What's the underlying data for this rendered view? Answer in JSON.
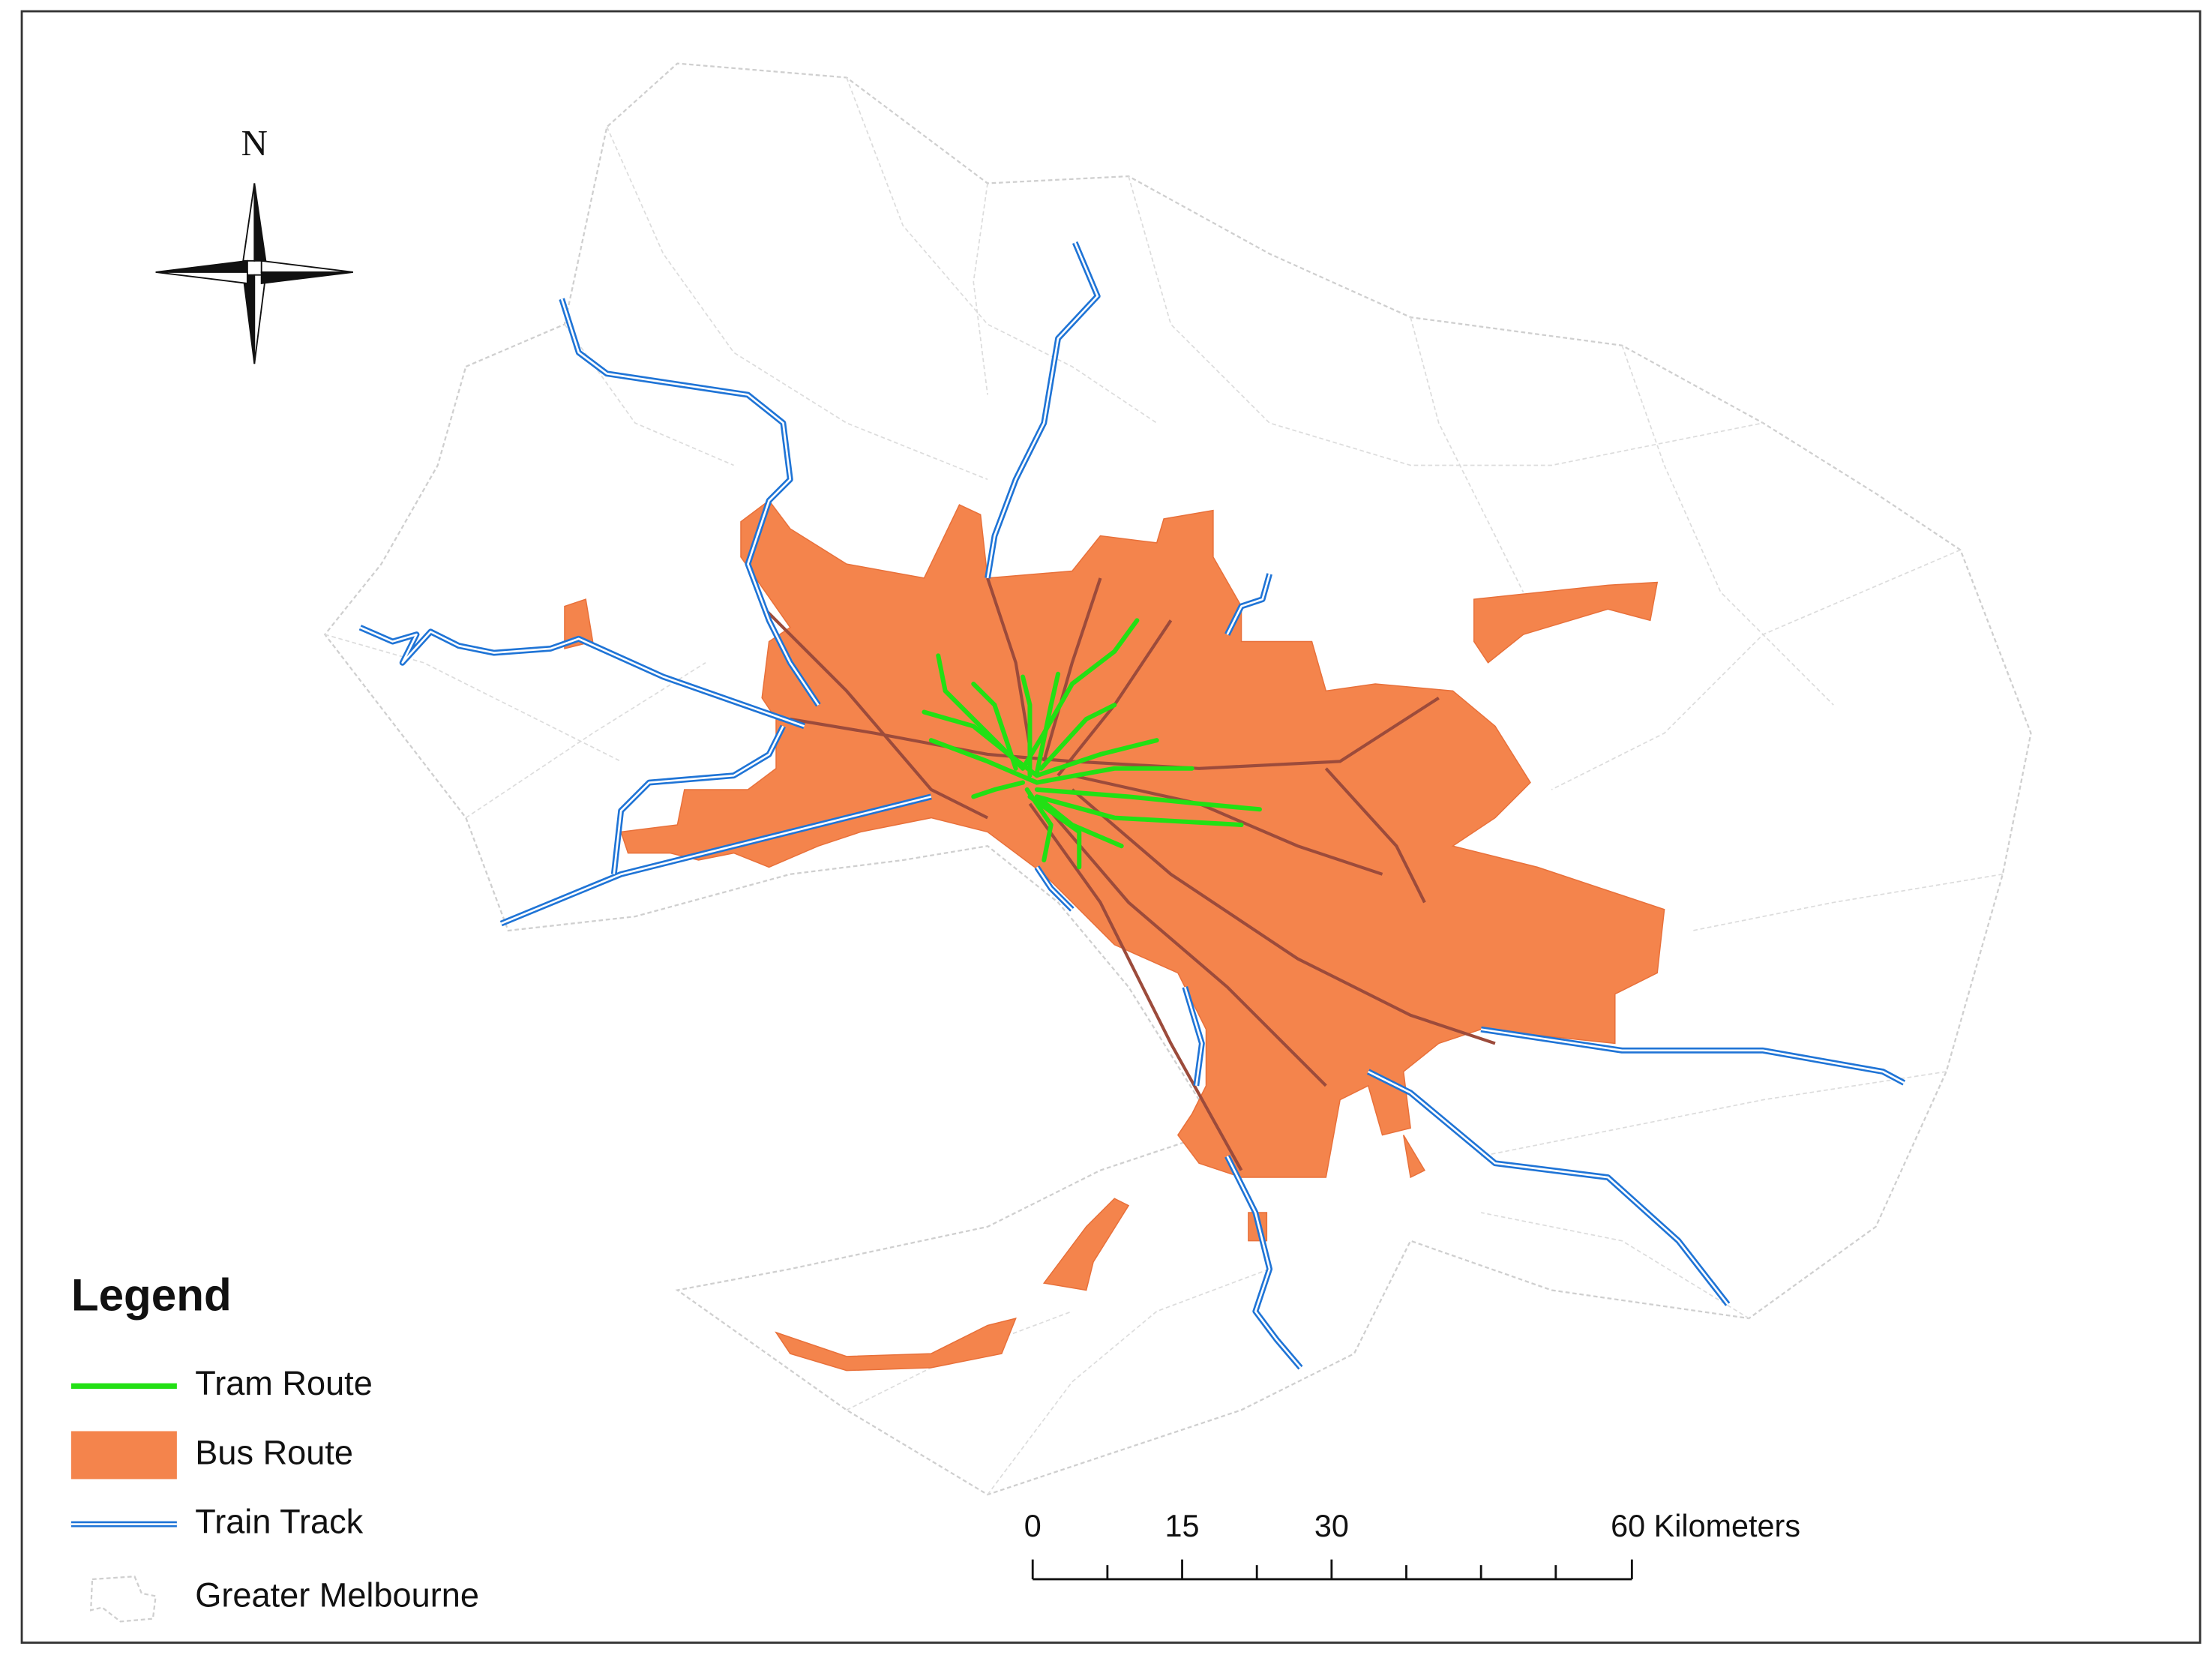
{
  "north_arrow": {
    "label": "N"
  },
  "legend": {
    "title": "Legend",
    "items": [
      "Tram Route",
      "Bus Route",
      "Train Track",
      "Greater Melbourne"
    ]
  },
  "scale_bar": {
    "labels": [
      "0",
      "15",
      "30",
      "60 Kilometers"
    ]
  }
}
